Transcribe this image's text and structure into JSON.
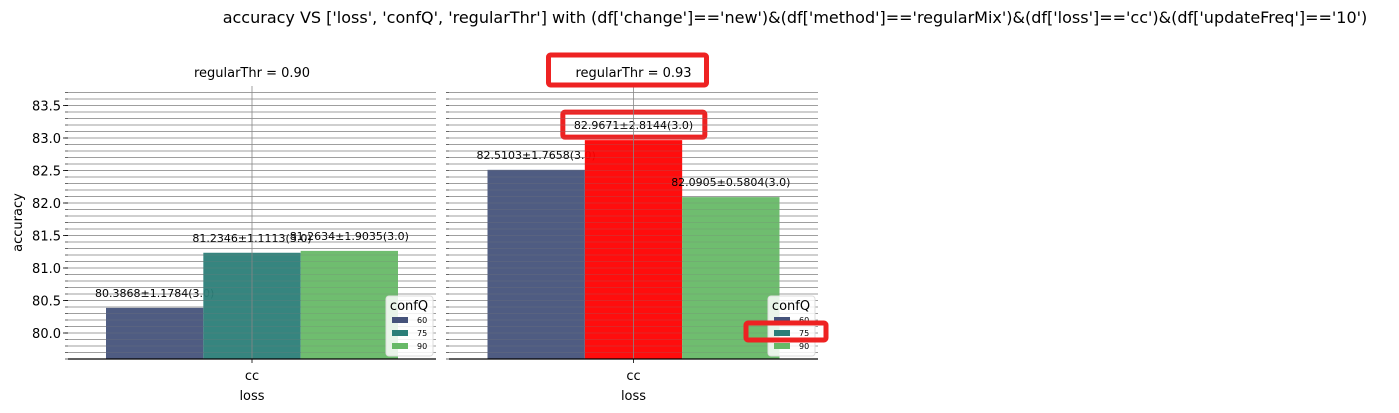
{
  "figure_title": "accuracy VS ['loss', 'confQ', 'regularThr'] with (df['change']=='new')&(df['method']=='regularMix')&(df['loss']=='cc')&(df['updateFreq']=='10')",
  "colors": {
    "c60": "#46537b",
    "c75": "#2b7e78",
    "c90": "#67b967",
    "highlight_bar": "#ff0000",
    "highlight_box": "#ee2222",
    "grid": "#888888"
  },
  "chart_data": [
    {
      "type": "bar",
      "title": "regularThr = 0.90",
      "xlabel": "loss",
      "ylabel": "accuracy",
      "categories": [
        "cc"
      ],
      "ylim": [
        79.6,
        83.8
      ],
      "yticks": [
        "80.0",
        "80.5",
        "81.0",
        "81.5",
        "82.0",
        "82.5",
        "83.0",
        "83.5"
      ],
      "series": [
        {
          "name": "60",
          "values": [
            80.3868
          ],
          "label": "80.3868±1.1784(3.0)"
        },
        {
          "name": "75",
          "values": [
            81.2346
          ],
          "label": "81.2346±1.1113(3.0)"
        },
        {
          "name": "90",
          "values": [
            81.2634
          ],
          "label": "81.2634±1.9035(3.0)"
        }
      ],
      "legend": {
        "title": "confQ",
        "position": "lower-right"
      }
    },
    {
      "type": "bar",
      "title": "regularThr = 0.93",
      "xlabel": "loss",
      "ylabel": "",
      "categories": [
        "cc"
      ],
      "ylim": [
        79.6,
        83.8
      ],
      "series": [
        {
          "name": "60",
          "values": [
            82.5103
          ],
          "label": "82.5103±1.7658(3.0)"
        },
        {
          "name": "75",
          "values": [
            82.9671
          ],
          "label": "82.9671±2.8144(3.0)",
          "highlighted": true
        },
        {
          "name": "90",
          "values": [
            82.0905
          ],
          "label": "82.0905±0.5804(3.0)"
        }
      ],
      "legend": {
        "title": "confQ",
        "position": "lower-right"
      },
      "highlights": [
        "title",
        "bar-75-label",
        "legend-75"
      ]
    }
  ]
}
